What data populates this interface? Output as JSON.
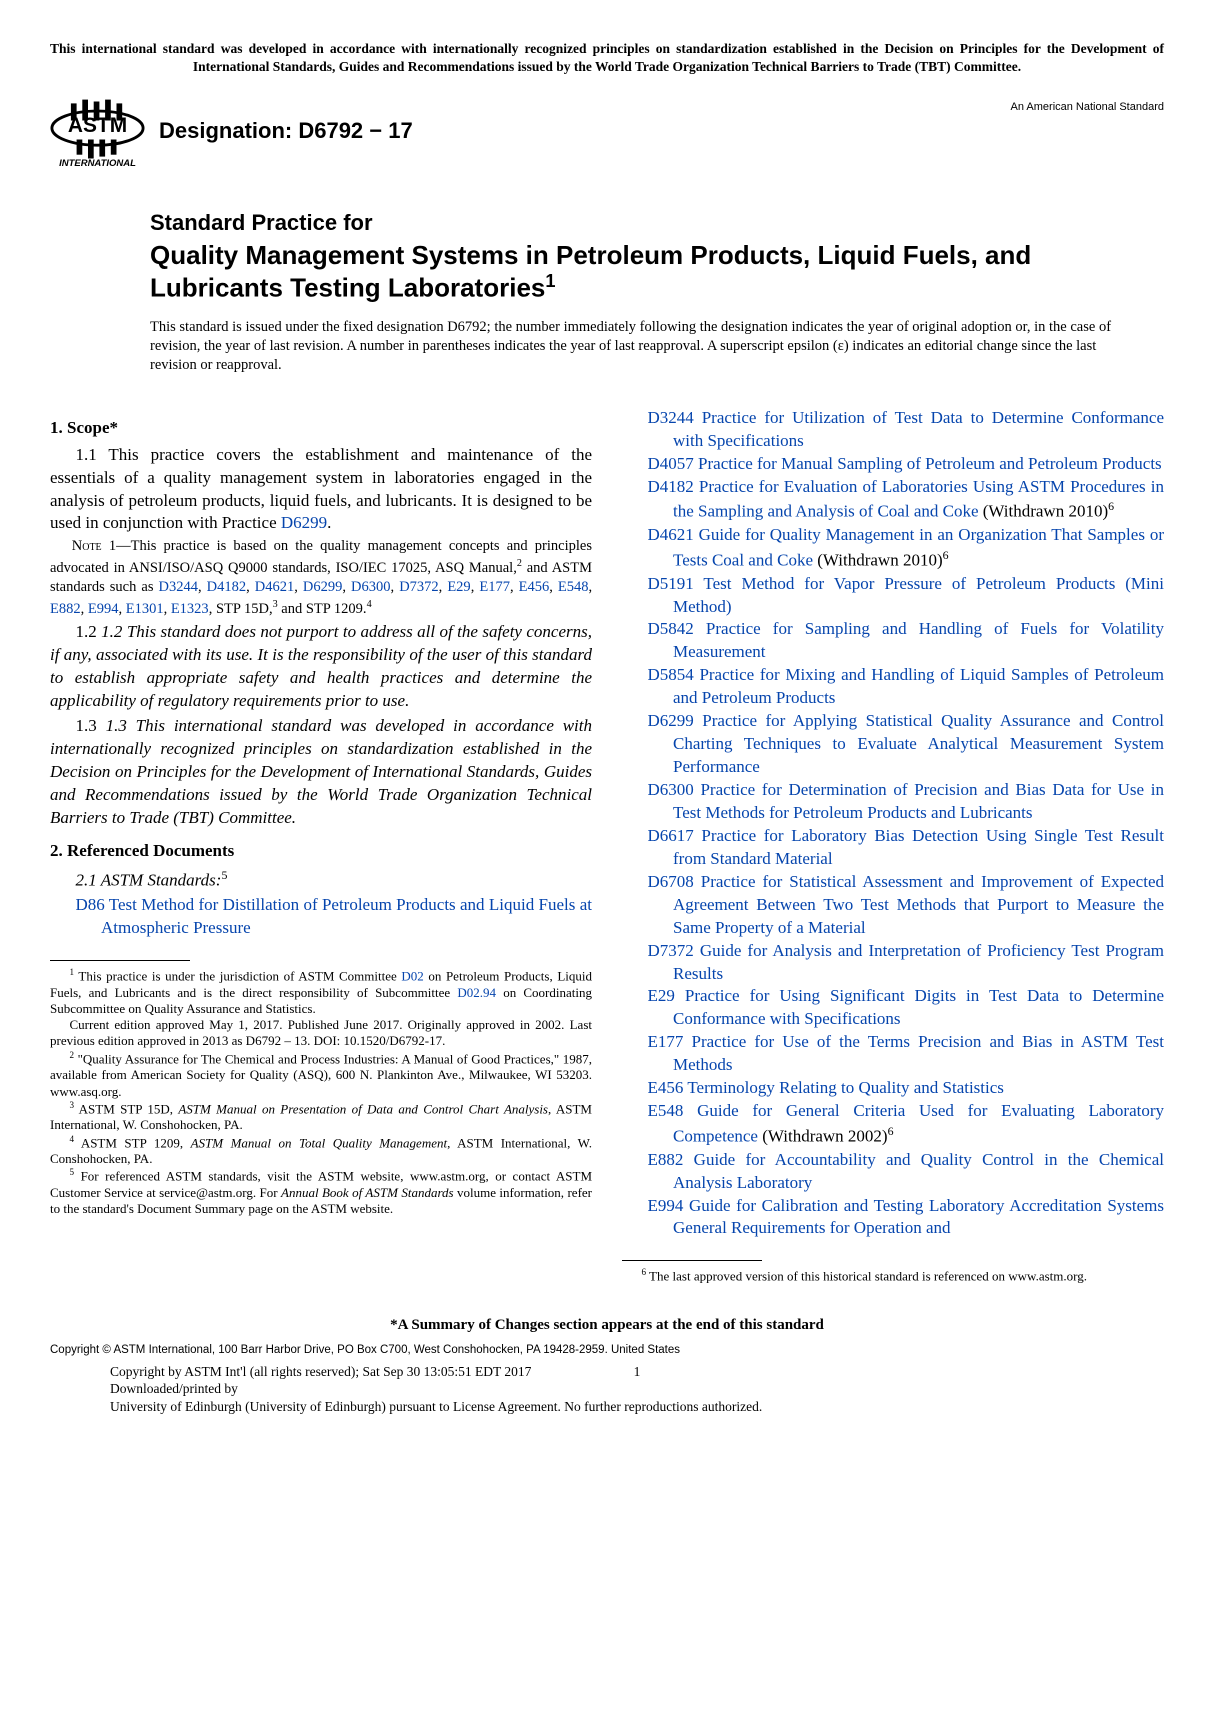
{
  "topNotice": "This international standard was developed in accordance with internationally recognized principles on standardization established in the Decision on Principles for the Development of International Standards, Guides and Recommendations issued by the World Trade Organization Technical Barriers to Trade (TBT) Committee.",
  "designationLabel": "Designation: D6792 − 17",
  "anStd": "An American National Standard",
  "pretitle": "Standard Practice for",
  "mainTitle": "Quality Management Systems in Petroleum Products, Liquid Fuels, and Lubricants Testing Laboratories",
  "issueNote": "This standard is issued under the fixed designation D6792; the number immediately following the designation indicates the year of original adoption or, in the case of revision, the year of last revision. A number in parentheses indicates the year of last reapproval. A superscript epsilon (ε) indicates an editorial change since the last revision or reapproval.",
  "scope": {
    "head": "1.  Scope*",
    "p11a": "1.1 This practice covers the establishment and maintenance of the essentials of a quality management system in laboratories engaged in the analysis of petroleum products, liquid fuels, and lubricants. It is designed to be used in conjunction with Practice ",
    "p11link": "D6299",
    "p11b": ".",
    "note1a": " 1—This practice is based on the quality management concepts and principles advocated in ANSI/ISO/ASQ Q9000 standards, ISO/IEC 17025, ASQ Manual,",
    "note1b": " and ASTM standards such as ",
    "note1links": "D3244, D4182, D4621, D6299, D6300, D7372, E29, E177, E456, E548, E882, E994, E1301, E1323",
    "note1c": ", STP 15D,",
    "note1d": " and STP 1209.",
    "p12": "1.2 This standard does not purport to address all of the safety concerns, if any, associated with its use. It is the responsibility of the user of this standard to establish appropriate safety and health practices and determine the applicability of regulatory requirements prior to use.",
    "p13": "1.3 This international standard was developed in accordance with internationally recognized principles on standardization established in the Decision on Principles for the Development of International Standards, Guides and Recommendations issued by the World Trade Organization Technical Barriers to Trade (TBT) Committee."
  },
  "refdoc": {
    "head": "2.  Referenced Documents",
    "sub": "2.1 ASTM Standards:"
  },
  "refsLeft": [
    {
      "code": "D86",
      "text": " Test Method for Distillation of Petroleum Products and Liquid Fuels at Atmospheric Pressure"
    }
  ],
  "refsRight": [
    {
      "code": "D3244",
      "text": " Practice for Utilization of Test Data to Determine Conformance with Specifications"
    },
    {
      "code": "D4057",
      "text": " Practice for Manual Sampling of Petroleum and Petroleum Products"
    },
    {
      "code": "D4182",
      "text": " Practice for Evaluation of Laboratories Using ASTM Procedures in the Sampling and Analysis of Coal and Coke",
      "suffix": " (Withdrawn 2010)",
      "sup": "6"
    },
    {
      "code": "D4621",
      "text": " Guide for Quality Management in an Organization That Samples or Tests Coal and Coke",
      "suffix": " (Withdrawn 2010)",
      "sup": "6"
    },
    {
      "code": "D5191",
      "text": " Test Method for Vapor Pressure of Petroleum Products (Mini Method)"
    },
    {
      "code": "D5842",
      "text": " Practice for Sampling and Handling of Fuels for Volatility Measurement"
    },
    {
      "code": "D5854",
      "text": " Practice for Mixing and Handling of Liquid Samples of Petroleum and Petroleum Products"
    },
    {
      "code": "D6299",
      "text": " Practice for Applying Statistical Quality Assurance and Control Charting Techniques to Evaluate Analytical Measurement System Performance"
    },
    {
      "code": "D6300",
      "text": " Practice for Determination of Precision and Bias Data for Use in Test Methods for Petroleum Products and Lubricants"
    },
    {
      "code": "D6617",
      "text": " Practice for Laboratory Bias Detection Using Single Test Result from Standard Material"
    },
    {
      "code": "D6708",
      "text": " Practice for Statistical Assessment and Improvement of Expected Agreement Between Two Test Methods that Purport to Measure the Same Property of a Material"
    },
    {
      "code": "D7372",
      "text": " Guide for Analysis and Interpretation of Proficiency Test Program Results"
    },
    {
      "code": "E29",
      "text": " Practice for Using Significant Digits in Test Data to Determine Conformance with Specifications"
    },
    {
      "code": "E177",
      "text": " Practice for Use of the Terms Precision and Bias in ASTM Test Methods"
    },
    {
      "code": "E456",
      "text": " Terminology Relating to Quality and Statistics"
    },
    {
      "code": "E548",
      "text": " Guide for General Criteria Used for Evaluating Laboratory Competence",
      "suffix": " (Withdrawn 2002)",
      "sup": "6"
    },
    {
      "code": "E882",
      "text": " Guide for Accountability and Quality Control in the Chemical Analysis Laboratory"
    },
    {
      "code": "E994",
      "text": " Guide for Calibration and Testing Laboratory Accreditation Systems General Requirements for Operation and"
    }
  ],
  "footnotesLeft": [
    " This practice is under the jurisdiction of ASTM Committee |D02| on Petroleum Products, Liquid Fuels, and Lubricants and is the direct responsibility of Subcommittee |D02.94| on Coordinating Subcommittee on Quality Assurance and Statistics.",
    "Current edition approved May 1, 2017. Published June 2017. Originally approved in 2002. Last previous edition approved in 2013 as D6792 – 13. DOI: 10.1520/D6792-17.",
    " \"Quality Assurance for The Chemical and Process Industries: A Manual of Good Practices,\" 1987, available from American Society for Quality (ASQ), 600 N. Plankinton Ave., Milwaukee, WI 53203. www.asq.org.",
    " ASTM STP 15D, *ASTM Manual on Presentation of Data and Control Chart Analysis*, ASTM International, W. Conshohocken, PA.",
    " ASTM STP 1209, *ASTM Manual on Total Quality Management*, ASTM International, W. Conshohocken, PA.",
    " For referenced ASTM standards, visit the ASTM website, www.astm.org, or contact ASTM Customer Service at service@astm.org. For *Annual Book of ASTM Standards* volume information, refer to the standard's Document Summary page on the ASTM website."
  ],
  "footnoteRight": " The last approved version of this historical standard is referenced on www.astm.org.",
  "summaryNote": "*A Summary of Changes section appears at the end of this standard",
  "copyright": "Copyright © ASTM International, 100 Barr Harbor Drive, PO Box C700, West Conshohocken, PA 19428-2959. United States",
  "footer1a": "Copyright by ASTM Int'l (all rights reserved); Sat Sep 30 13:05:51 EDT 2017",
  "pageNum": "1",
  "footer2": "Downloaded/printed by",
  "footer3": "University of Edinburgh (University of Edinburgh) pursuant to License Agreement. No further reproductions authorized."
}
